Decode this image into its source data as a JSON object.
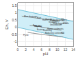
{
  "chart_data": {
    "type": "line",
    "xlabel": "pH",
    "ylabel": "Eh, V",
    "xlim": [
      0,
      14
    ],
    "ylim": [
      -1.3,
      1.7
    ],
    "xticks": [
      0,
      2,
      4,
      6,
      8,
      10,
      12,
      14
    ],
    "yticks": [
      -1,
      -0.5,
      0,
      0.5,
      1,
      1.5
    ],
    "grid": true,
    "series": [
      {
        "type": "band",
        "color": "#d0eef8",
        "x": [
          0,
          14
        ],
        "values": [
          1.23,
          0.413
        ],
        "lower": [
          0.0,
          -0.828
        ]
      },
      {
        "type": "line",
        "color": "#70c0d8",
        "x": [
          0,
          14
        ],
        "values": [
          1.23,
          0.413
        ]
      },
      {
        "type": "line",
        "color": "#70c0d8",
        "x": [
          0,
          14
        ],
        "values": [
          0.0,
          -0.828
        ]
      },
      {
        "type": "line",
        "color": "#666666",
        "x": [
          1.0,
          4.5
        ],
        "values": [
          0.78,
          0.65
        ]
      },
      {
        "type": "line",
        "color": "#666666",
        "x": [
          4.5,
          7.0
        ],
        "values": [
          0.65,
          0.56
        ]
      },
      {
        "type": "line",
        "color": "#666666",
        "x": [
          7.0,
          10.5
        ],
        "values": [
          0.56,
          0.42
        ]
      },
      {
        "type": "line",
        "color": "#666666",
        "x": [
          3.0,
          5.5
        ],
        "values": [
          0.14,
          0.05
        ]
      },
      {
        "type": "line",
        "color": "#666666",
        "x": [
          5.5,
          8.5
        ],
        "values": [
          0.05,
          -0.1
        ]
      },
      {
        "type": "line",
        "color": "#666666",
        "x": [
          8.5,
          11.0
        ],
        "values": [
          -0.1,
          -0.2
        ]
      },
      {
        "type": "line",
        "color": "#666666",
        "x": [
          2.5,
          7.0
        ],
        "values": [
          -0.35,
          -0.52
        ]
      },
      {
        "type": "line",
        "color": "#666666",
        "x": [
          7.0,
          11.5
        ],
        "values": [
          -0.52,
          -0.66
        ]
      }
    ],
    "annotations": [
      {
        "text": "Mine drainage",
        "x": 1.2,
        "y": 0.75,
        "color": "#333333"
      },
      {
        "text": "Rain",
        "x": 4.5,
        "y": 0.65,
        "color": "#333333"
      },
      {
        "text": "Oceans",
        "x": 6.5,
        "y": 0.57,
        "color": "#333333"
      },
      {
        "text": "At the Ocean-air",
        "x": 7.8,
        "y": 0.5,
        "color": "#333333"
      },
      {
        "text": "interface",
        "x": 8.3,
        "y": 0.44,
        "color": "#333333"
      },
      {
        "text": "Rivers",
        "x": 5.8,
        "y": 0.5,
        "color": "#333333"
      },
      {
        "text": "Seawater",
        "x": 7.5,
        "y": 0.38,
        "color": "#333333"
      },
      {
        "text": "Waterlogged soils",
        "x": 8.5,
        "y": 0.28,
        "color": "#333333"
      },
      {
        "text": "Groundwater",
        "x": 7.8,
        "y": 0.18,
        "color": "#333333"
      },
      {
        "text": "H2O2",
        "x": 10.8,
        "y": 0.44,
        "color": "#444444"
      },
      {
        "text": "H2O",
        "x": 11.0,
        "y": 0.28,
        "color": "#444444"
      },
      {
        "text": "Bog",
        "x": 3.5,
        "y": 0.12,
        "color": "#333333"
      },
      {
        "text": "Saline",
        "x": 4.2,
        "y": 0.06,
        "color": "#333333"
      },
      {
        "text": "Bog Bay",
        "x": 3.8,
        "y": 0.08,
        "color": "#333333"
      },
      {
        "text": "Euxinic",
        "x": 4.5,
        "y": -0.18,
        "color": "#333333"
      },
      {
        "text": "Reducing",
        "x": 6.0,
        "y": -0.2,
        "color": "#333333"
      },
      {
        "text": "Marine sediments",
        "x": 7.0,
        "y": -0.12,
        "color": "#333333"
      },
      {
        "text": "Pyrite",
        "x": 1.0,
        "y": -0.52,
        "color": "#333333"
      },
      {
        "text": "Reducing continental",
        "x": 6.5,
        "y": -0.4,
        "color": "#333333"
      },
      {
        "text": "O2",
        "x": 10.5,
        "y": 0.56,
        "color": "#444444"
      },
      {
        "text": "H2",
        "x": 10.5,
        "y": -0.4,
        "color": "#444444"
      }
    ]
  }
}
